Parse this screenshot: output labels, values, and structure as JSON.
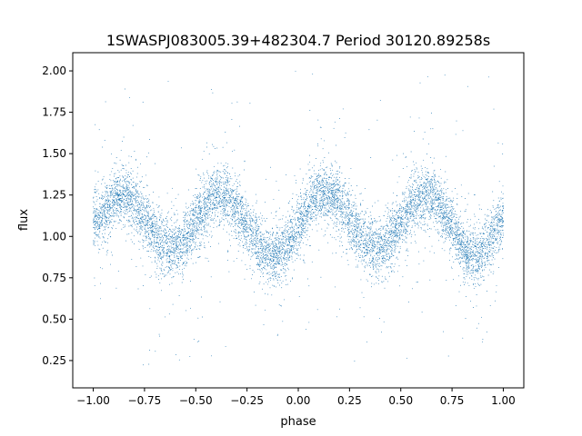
{
  "chart_data": {
    "type": "scatter",
    "title": "1SWASPJ083005.39+482304.7 Period 30120.89258s",
    "xlabel": "phase",
    "ylabel": "flux",
    "xlim": [
      -1.1,
      1.1
    ],
    "ylim": [
      0.085,
      2.11
    ],
    "x_ticks": [
      -1.0,
      -0.75,
      -0.5,
      -0.25,
      0.0,
      0.25,
      0.5,
      0.75,
      1.0
    ],
    "x_tick_labels": [
      "−1.00",
      "−0.75",
      "−0.50",
      "−0.25",
      "0.00",
      "0.25",
      "0.50",
      "0.75",
      "1.00"
    ],
    "y_ticks": [
      0.25,
      0.5,
      0.75,
      1.0,
      1.25,
      1.5,
      1.75,
      2.0
    ],
    "y_tick_labels": [
      "0.25",
      "0.50",
      "0.75",
      "1.00",
      "1.25",
      "1.50",
      "1.75",
      "2.00"
    ],
    "grid": false,
    "marker_color": "#1f77b4",
    "series": [
      {
        "name": "",
        "description_points": [
          {
            "x": -1.0,
            "y": 1.1
          },
          {
            "x": -0.86,
            "y": 1.25
          },
          {
            "x": -0.62,
            "y": 0.93
          },
          {
            "x": -0.38,
            "y": 1.24
          },
          {
            "x": -0.12,
            "y": 0.88
          },
          {
            "x": 0.13,
            "y": 1.26
          },
          {
            "x": 0.38,
            "y": 0.93
          },
          {
            "x": 0.63,
            "y": 1.25
          },
          {
            "x": 0.87,
            "y": 0.88
          },
          {
            "x": 1.0,
            "y": 1.1
          }
        ]
      }
    ]
  }
}
